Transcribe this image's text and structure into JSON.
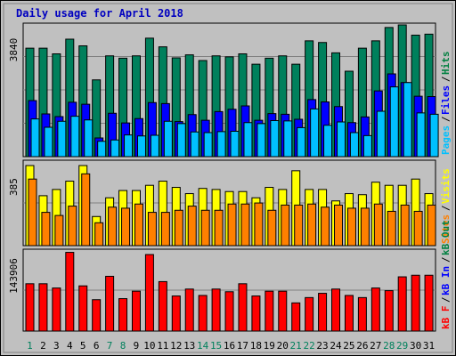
{
  "chart_data": [
    {
      "type": "bar",
      "title": "Daily usage for April 2018",
      "categories": [
        "1",
        "2",
        "3",
        "4",
        "5",
        "6",
        "7",
        "8",
        "9",
        "10",
        "11",
        "12",
        "13",
        "14",
        "15",
        "16",
        "17",
        "18",
        "19",
        "20",
        "21",
        "22",
        "23",
        "24",
        "25",
        "26",
        "27",
        "28",
        "29",
        "30",
        "31"
      ],
      "weekend_days": [
        "1",
        "7",
        "8",
        "14",
        "15",
        "21",
        "22",
        "28",
        "29"
      ],
      "y_max_label": "3840",
      "ylim": [
        0,
        3840
      ],
      "legend": [
        {
          "label": "Pages",
          "color": "#00c0ff"
        },
        {
          "label": "Files",
          "color": "#0000ff"
        },
        {
          "label": "Hits",
          "color": "#008040"
        }
      ],
      "series": [
        {
          "name": "Hits",
          "color": "#00805c",
          "values": [
            3250,
            3250,
            3080,
            3520,
            3320,
            2300,
            3020,
            2950,
            3020,
            3550,
            3290,
            2960,
            3050,
            2880,
            3020,
            2990,
            3080,
            2770,
            2950,
            3020,
            2770,
            3470,
            3420,
            3110,
            2560,
            3250,
            3470,
            3870,
            3950,
            3640,
            3670
          ]
        },
        {
          "name": "Files",
          "color": "#0000ff",
          "values": [
            1680,
            1280,
            1200,
            1630,
            1570,
            560,
            1300,
            1010,
            1140,
            1620,
            1590,
            1050,
            1260,
            1090,
            1350,
            1420,
            1520,
            1090,
            1290,
            1270,
            1120,
            1710,
            1640,
            1500,
            1020,
            1190,
            1970,
            2480,
            2220,
            1810,
            1800
          ]
        },
        {
          "name": "Pages",
          "color": "#00c0ff",
          "values": [
            1130,
            880,
            1060,
            1210,
            1100,
            460,
            500,
            650,
            620,
            640,
            1060,
            990,
            740,
            720,
            750,
            760,
            1020,
            990,
            1080,
            1070,
            870,
            1430,
            940,
            1040,
            720,
            630,
            1360,
            2090,
            2220,
            1310,
            1270
          ]
        }
      ]
    },
    {
      "type": "bar",
      "y_max_label": "385",
      "ylim": [
        0,
        385
      ],
      "legend": [
        {
          "label": "Sites",
          "color": "#ff8000"
        },
        {
          "label": "Visits",
          "color": "#ffff00"
        }
      ],
      "series": [
        {
          "name": "Visits",
          "color": "#ffff00",
          "values": [
            385,
            240,
            270,
            310,
            385,
            140,
            230,
            265,
            265,
            290,
            310,
            280,
            250,
            275,
            270,
            260,
            260,
            230,
            280,
            270,
            360,
            270,
            270,
            215,
            250,
            245,
            305,
            290,
            290,
            320,
            250
          ]
        },
        {
          "name": "Sites",
          "color": "#ff8000",
          "values": [
            320,
            160,
            145,
            190,
            345,
            110,
            185,
            180,
            200,
            160,
            160,
            170,
            190,
            170,
            170,
            200,
            200,
            205,
            170,
            195,
            195,
            200,
            185,
            195,
            180,
            180,
            200,
            165,
            195,
            165,
            195
          ]
        }
      ]
    },
    {
      "type": "bar",
      "y_max_label": "143906",
      "ylim": [
        0,
        143906
      ],
      "legend": [
        {
          "label": "kB F",
          "color": "#ff0000"
        },
        {
          "label": "kB In",
          "color": "#0000ff"
        },
        {
          "label": "kB Out",
          "color": "#008040"
        }
      ],
      "series": [
        {
          "name": "kB F",
          "color": "#ff0000",
          "values": [
            89000,
            89000,
            81000,
            148000,
            85000,
            59000,
            103000,
            61000,
            75000,
            143906,
            93000,
            66000,
            79000,
            67000,
            79000,
            74000,
            89000,
            66000,
            75000,
            75000,
            53000,
            63000,
            71000,
            79000,
            67000,
            63000,
            81000,
            76000,
            102000,
            105000,
            105000
          ]
        }
      ]
    }
  ]
}
